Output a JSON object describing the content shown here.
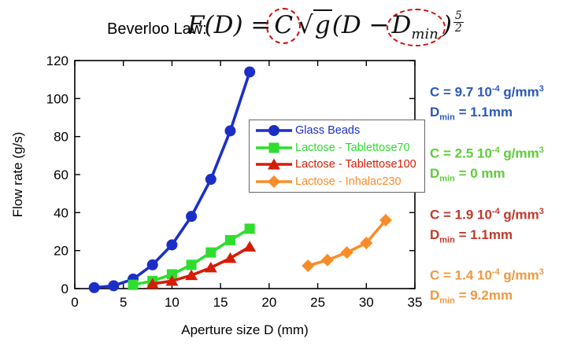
{
  "title": {
    "label": "Beverloo Law:",
    "formula": {
      "lhs": "F(D) =",
      "coef": "C",
      "sqrt_sign": "√",
      "sqrt_arg": "g",
      "mid": "(D −",
      "dmin_base": "D",
      "dmin_sub": "min",
      "close_paren": ")",
      "exp_num": "5",
      "exp_den": "2"
    },
    "highlight_color": "#cc1111"
  },
  "chart_data": {
    "type": "line",
    "title": "",
    "xlabel": "Aperture size D (mm)",
    "ylabel": "Flow rate (g/s)",
    "xlim": [
      0,
      35
    ],
    "ylim": [
      0,
      120
    ],
    "xticks": [
      0,
      5,
      10,
      15,
      20,
      25,
      30,
      35
    ],
    "yticks": [
      0,
      20,
      40,
      60,
      80,
      100,
      120
    ],
    "grid": false,
    "legend_position": "inside upper right of plot",
    "series": [
      {
        "name": "Glass Beads",
        "color": "#1b2fc7",
        "marker": "circle",
        "x": [
          2,
          4,
          6,
          8,
          10,
          12,
          14,
          16,
          18
        ],
        "y": [
          0.5,
          1.5,
          5,
          12.5,
          23,
          38,
          57.5,
          83,
          114
        ]
      },
      {
        "name": "Lactose - Tablettose70",
        "color": "#2edd2e",
        "marker": "square",
        "x": [
          6,
          8,
          10,
          12,
          14,
          16,
          18
        ],
        "y": [
          2,
          4,
          7.5,
          12.5,
          19,
          25.5,
          31.5
        ]
      },
      {
        "name": "Lactose - Tablettose100",
        "color": "#d61c04",
        "marker": "triangle",
        "x": [
          8,
          10,
          12,
          14,
          16,
          18
        ],
        "y": [
          2.5,
          4,
          7,
          11,
          16,
          22
        ]
      },
      {
        "name": "Lactose - Inhalac230",
        "color": "#f98c28",
        "marker": "diamond",
        "x": [
          24,
          26,
          28,
          30,
          32
        ],
        "y": [
          12,
          15,
          19,
          24,
          36
        ]
      }
    ]
  },
  "annotations": [
    {
      "name": "glass-beads-fit",
      "color": "#2b58b8",
      "c_base": "C = 9.7 10",
      "c_exp": "-4",
      "c_unit": " g/mm",
      "c_unit_exp": "3",
      "d_base": "D",
      "d_sub": "min",
      "d_val": " = 1.1mm"
    },
    {
      "name": "tablettose70-fit",
      "color": "#5ecc38",
      "c_base": "C = 2.5 10",
      "c_exp": "-4",
      "c_unit": " g/mm",
      "c_unit_exp": "3",
      "d_base": "D",
      "d_sub": "min",
      "d_val": " = 0 mm"
    },
    {
      "name": "tablettose100-fit",
      "color": "#c0392b",
      "c_base": "C = 1.9 10",
      "c_exp": "-4",
      "c_unit": " g/mm",
      "c_unit_exp": "3",
      "d_base": "D",
      "d_sub": "min",
      "d_val": " = 1.1mm"
    },
    {
      "name": "inhalac230-fit",
      "color": "#f0983f",
      "c_base": "C = 1.4 10",
      "c_exp": "-4",
      "c_unit": " g/mm",
      "c_unit_exp": "3",
      "d_base": "D",
      "d_sub": "min",
      "d_val": " = 9.2mm"
    }
  ]
}
